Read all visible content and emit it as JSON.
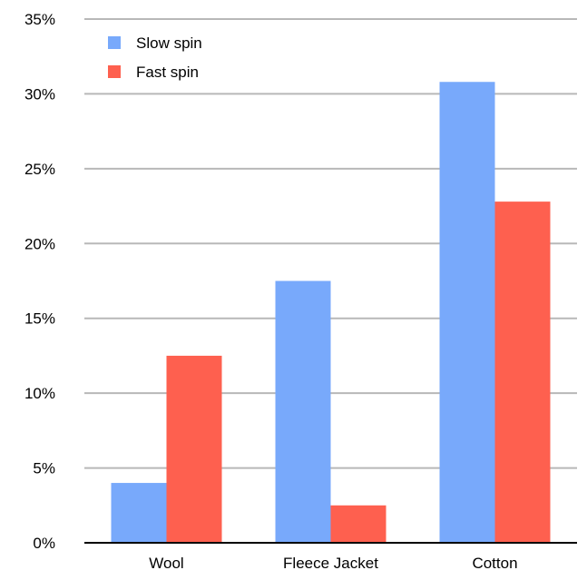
{
  "chart_data": {
    "type": "bar",
    "categories": [
      "Wool",
      "Fleece Jacket",
      "Cotton"
    ],
    "series": [
      {
        "name": "Slow spin",
        "color": "#78a9fb",
        "values": [
          4,
          17.5,
          30.8
        ]
      },
      {
        "name": "Fast spin",
        "color": "#fe604f",
        "values": [
          12.5,
          2.5,
          22.8
        ]
      }
    ],
    "title": "",
    "xlabel": "",
    "ylabel": "",
    "ylim": [
      0,
      35
    ],
    "yticks": [
      "0%",
      "5%",
      "10%",
      "15%",
      "20%",
      "25%",
      "30%",
      "35%"
    ],
    "grid": true,
    "legend_position": "top-left"
  }
}
